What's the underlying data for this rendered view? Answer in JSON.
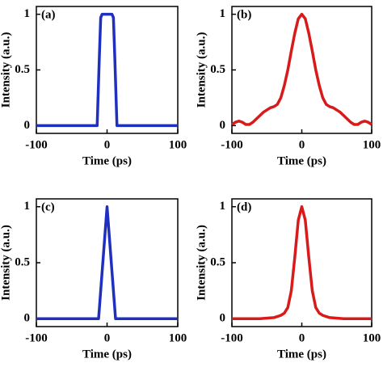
{
  "chart_data": [
    {
      "type": "line",
      "label": "(a)",
      "x_label": "Time (ps)",
      "y_label": "Intensity (a.u.)",
      "color": "#1f2fbf",
      "x": [
        -100,
        -14,
        -11,
        -9,
        -7,
        7,
        9,
        11,
        14,
        100
      ],
      "values": [
        0,
        0,
        0.6,
        0.97,
        1,
        1,
        0.97,
        0.6,
        0,
        0
      ],
      "xlim": [
        -100,
        100
      ],
      "ylim": [
        -0.07,
        1.07
      ],
      "xticks": [
        -100,
        0,
        100
      ],
      "yticks": [
        0,
        0.5,
        1
      ]
    },
    {
      "type": "line",
      "label": "(b)",
      "x_label": "Time (ps)",
      "y_label": "Intensity (a.u.)",
      "color": "#d91a1a",
      "x": [
        -100,
        -95,
        -90,
        -85,
        -80,
        -75,
        -70,
        -65,
        -60,
        -55,
        -50,
        -45,
        -40,
        -35,
        -30,
        -25,
        -20,
        -15,
        -10,
        -5,
        0,
        5,
        10,
        15,
        20,
        25,
        30,
        35,
        40,
        45,
        50,
        55,
        60,
        65,
        70,
        75,
        80,
        85,
        90,
        95,
        100
      ],
      "values": [
        0.01,
        0.03,
        0.04,
        0.03,
        0.01,
        0.01,
        0.03,
        0.06,
        0.09,
        0.12,
        0.14,
        0.16,
        0.17,
        0.19,
        0.25,
        0.36,
        0.5,
        0.67,
        0.83,
        0.96,
        1,
        0.96,
        0.83,
        0.67,
        0.5,
        0.36,
        0.25,
        0.19,
        0.17,
        0.16,
        0.14,
        0.12,
        0.09,
        0.06,
        0.03,
        0.01,
        0.01,
        0.03,
        0.04,
        0.03,
        0.01
      ],
      "xlim": [
        -100,
        100
      ],
      "ylim": [
        -0.07,
        1.07
      ],
      "xticks": [
        -100,
        0,
        100
      ],
      "yticks": [
        0,
        0.5,
        1
      ]
    },
    {
      "type": "line",
      "label": "(c)",
      "x_label": "Time (ps)",
      "y_label": "Intensity (a.u.)",
      "color": "#1f2fbf",
      "x": [
        -100,
        -12,
        0,
        12,
        100
      ],
      "values": [
        0,
        0,
        1,
        0,
        0
      ],
      "xlim": [
        -100,
        100
      ],
      "ylim": [
        -0.07,
        1.07
      ],
      "xticks": [
        -100,
        0,
        100
      ],
      "yticks": [
        0,
        0.5,
        1
      ]
    },
    {
      "type": "line",
      "label": "(d)",
      "x_label": "Time (ps)",
      "y_label": "Intensity (a.u.)",
      "color": "#d91a1a",
      "x": [
        -100,
        -60,
        -40,
        -35,
        -30,
        -25,
        -20,
        -15,
        -10,
        -5,
        0,
        5,
        10,
        15,
        20,
        25,
        30,
        35,
        40,
        60,
        100
      ],
      "values": [
        0,
        0,
        0.01,
        0.02,
        0.03,
        0.05,
        0.1,
        0.25,
        0.55,
        0.88,
        1,
        0.88,
        0.55,
        0.25,
        0.1,
        0.05,
        0.03,
        0.02,
        0.01,
        0,
        0
      ],
      "xlim": [
        -100,
        100
      ],
      "ylim": [
        -0.07,
        1.07
      ],
      "xticks": [
        -100,
        0,
        100
      ],
      "yticks": [
        0,
        0.5,
        1
      ]
    }
  ]
}
